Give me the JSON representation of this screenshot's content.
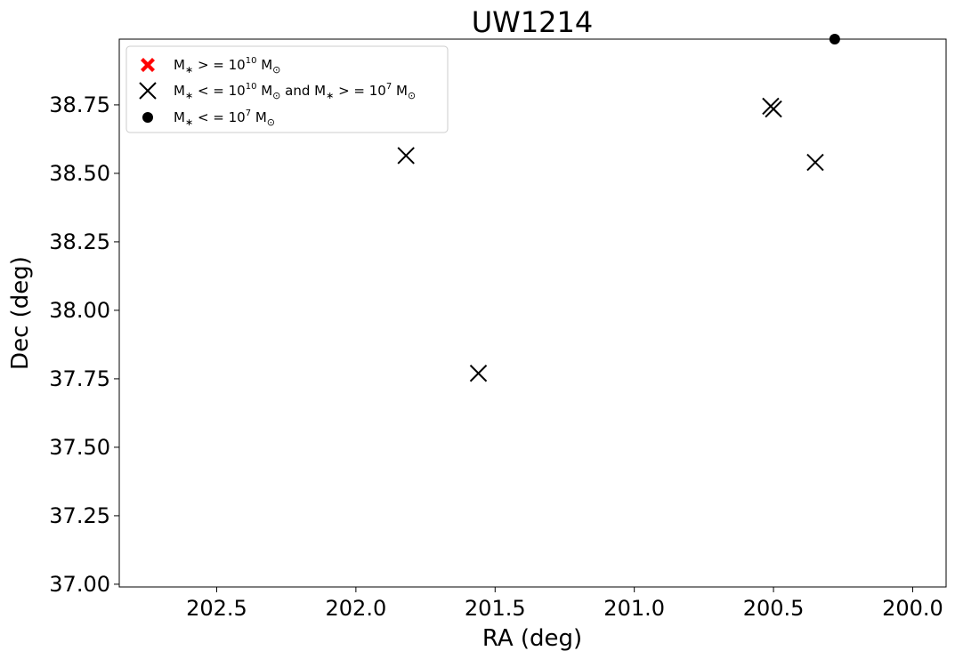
{
  "chart_data": {
    "type": "scatter",
    "title": "UW1214",
    "xlabel": "RA (deg)",
    "ylabel": "Dec (deg)",
    "xlim": [
      202.85,
      199.88
    ],
    "ylim": [
      36.99,
      38.99
    ],
    "x_inverted": true,
    "x_ticks": [
      202.5,
      202.0,
      201.5,
      201.0,
      200.5,
      200.0
    ],
    "x_tick_labels": [
      "202.5",
      "202.0",
      "201.5",
      "201.0",
      "200.5",
      "200.0"
    ],
    "y_ticks": [
      37.0,
      37.25,
      37.5,
      37.75,
      38.0,
      38.25,
      38.5,
      38.75
    ],
    "y_tick_labels": [
      "37.00",
      "37.25",
      "37.50",
      "37.75",
      "38.00",
      "38.25",
      "38.50",
      "38.75"
    ],
    "grid": false,
    "legend_position": "upper-left",
    "series": [
      {
        "name": "M* >= 10^10 Msun",
        "legend_label": "M_* >= 10^10 M_sun",
        "marker": "thick-x",
        "color": "#ff0000",
        "points": []
      },
      {
        "name": "10^7 Msun <= M* <= 10^10 Msun",
        "legend_label": "M_* <= 10^10 M_sun and M_* >= 10^7 M_sun",
        "marker": "x",
        "color": "#000000",
        "points": [
          {
            "x": 201.82,
            "y": 38.565
          },
          {
            "x": 201.56,
            "y": 37.77
          },
          {
            "x": 200.51,
            "y": 38.745
          },
          {
            "x": 200.5,
            "y": 38.735
          },
          {
            "x": 200.35,
            "y": 38.54
          }
        ]
      },
      {
        "name": "M* <= 10^7 Msun",
        "legend_label": "M_* <= 10^7 M_sun",
        "marker": "circle",
        "color": "#000000",
        "points": [
          {
            "x": 200.28,
            "y": 38.99
          }
        ]
      }
    ]
  }
}
